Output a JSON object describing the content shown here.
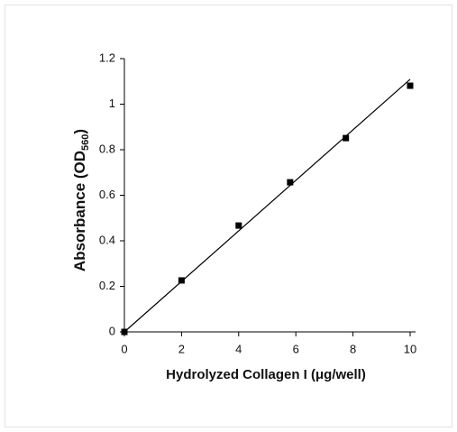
{
  "chart_data": {
    "type": "scatter",
    "x_label": "Hydrolyzed Collagen I (μg/well)",
    "y_label": "Absorbance (OD",
    "y_label_subscript": "560",
    "y_label_end": ")",
    "series": [
      {
        "color": "#000000",
        "x": [
          0,
          2,
          4,
          5.8,
          7.75,
          10
        ],
        "values": [
          0,
          0.226,
          0.467,
          0.657,
          0.851,
          1.081
        ]
      }
    ],
    "trendline": {
      "color": "#000000",
      "x": [
        0,
        10
      ],
      "values": [
        0,
        1.109
      ]
    },
    "xlim": [
      0,
      10
    ],
    "xticks": [
      0,
      2,
      4,
      6,
      8,
      10
    ],
    "ylim": [
      0,
      1.2
    ],
    "yticks": [
      0,
      0.2,
      0.4,
      0.6,
      0.8,
      1,
      1.2
    ],
    "grid": false
  }
}
